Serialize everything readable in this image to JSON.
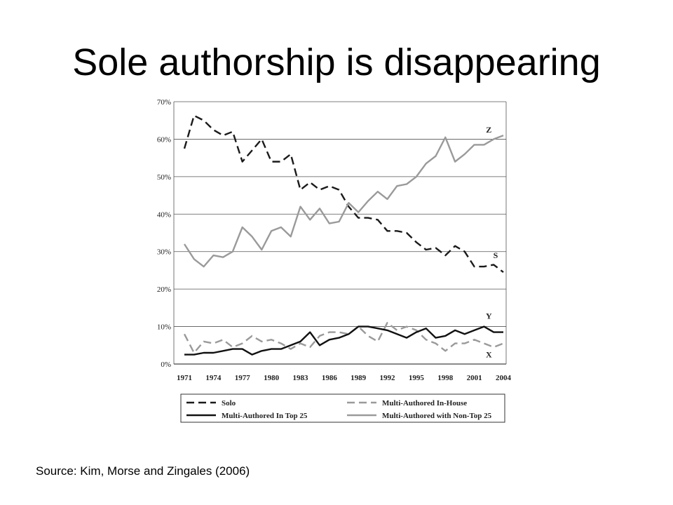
{
  "slide": {
    "title": "Sole authorship is disappearing",
    "source": "Source: Kim, Morse and Zingales (2006)"
  },
  "chart_data": {
    "type": "line",
    "title": "",
    "xlabel": "",
    "ylabel": "",
    "xlim": [
      1971,
      2004
    ],
    "ylim": [
      0,
      70
    ],
    "grid": true,
    "x_ticks": [
      "1971",
      "1974",
      "1977",
      "1980",
      "1983",
      "1986",
      "1989",
      "1992",
      "1995",
      "1998",
      "2001",
      "2004"
    ],
    "y_ticks": [
      "0%",
      "10%",
      "20%",
      "30%",
      "40%",
      "50%",
      "60%",
      "70%"
    ],
    "legend_position": "bottom",
    "x": [
      1971,
      1972,
      1973,
      1974,
      1975,
      1976,
      1977,
      1978,
      1979,
      1980,
      1981,
      1982,
      1983,
      1984,
      1985,
      1986,
      1987,
      1988,
      1989,
      1990,
      1991,
      1992,
      1993,
      1994,
      1995,
      1996,
      1997,
      1998,
      1999,
      2000,
      2001,
      2002,
      2003,
      2004
    ],
    "series": [
      {
        "name": "Solo",
        "label": "S",
        "color": "#1a1a1a",
        "dash": "dashed",
        "values": [
          57.5,
          66.3,
          65,
          62.5,
          61,
          62,
          54,
          57,
          60,
          54,
          54,
          56,
          46.5,
          48.5,
          46.5,
          47.5,
          46.5,
          42,
          39,
          39,
          38.5,
          35.5,
          35.5,
          35,
          32.5,
          30.5,
          31,
          29,
          31.5,
          30,
          26,
          26,
          26.5,
          24.5
        ]
      },
      {
        "name": "Multi-Authored In-House",
        "label": "X",
        "color": "#9a9a9a",
        "dash": "dashed",
        "values": [
          8,
          3,
          6,
          5.5,
          6.5,
          4.5,
          5.5,
          7.5,
          6,
          6.5,
          5.5,
          4,
          5.5,
          4.5,
          7.5,
          8.5,
          8.5,
          8,
          10,
          7.5,
          6,
          11,
          9,
          10,
          9,
          6.5,
          5.5,
          3.5,
          5.5,
          5.5,
          6.5,
          5.5,
          4.5,
          5.5
        ]
      },
      {
        "name": "Multi-Authored In Top 25",
        "label": "Y",
        "color": "#111111",
        "dash": "solid",
        "values": [
          2.5,
          2.5,
          3,
          3,
          3.5,
          4,
          4,
          2.5,
          3.5,
          4,
          4,
          5,
          6,
          8.5,
          5,
          6.5,
          7,
          8,
          10,
          10,
          9.5,
          9,
          8,
          7,
          8.5,
          9.5,
          7,
          7.5,
          9,
          8,
          9,
          10,
          8.5,
          8.5
        ]
      },
      {
        "name": "Multi-Authored with Non-Top 25",
        "label": "Z",
        "color": "#9a9a9a",
        "dash": "solid",
        "values": [
          32,
          28,
          26,
          29,
          28.5,
          30,
          36.5,
          34,
          30.5,
          35.5,
          36.5,
          34,
          42,
          38.5,
          41.5,
          37.5,
          38,
          43,
          40.5,
          43.5,
          46,
          44,
          47.5,
          48,
          50,
          53.5,
          55.5,
          60.5,
          54,
          56,
          58.5,
          58.5,
          60,
          61
        ]
      }
    ]
  }
}
